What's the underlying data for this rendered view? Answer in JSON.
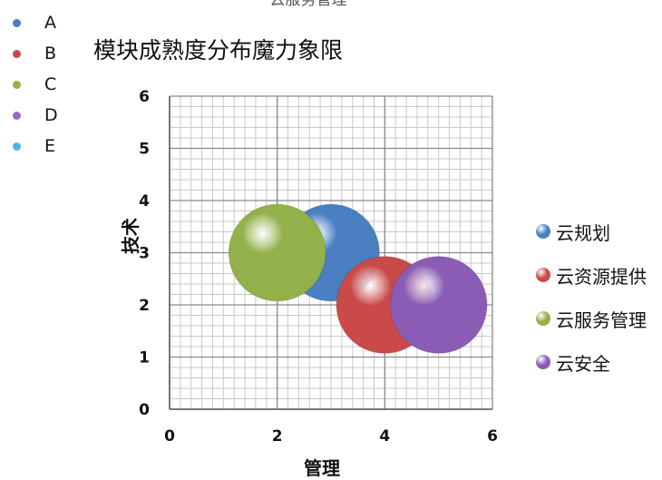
{
  "top_label": "云服务管理",
  "left_legend": [
    {
      "label": "A",
      "color": "#4a7fc1"
    },
    {
      "label": "B",
      "color": "#c94a48"
    },
    {
      "label": "C",
      "color": "#92b14a"
    },
    {
      "label": "D",
      "color": "#9a6ac5"
    },
    {
      "label": "E",
      "color": "#4ab6e8"
    }
  ],
  "chart_data": {
    "type": "bubble",
    "title": "模块成熟度分布魔力象限",
    "xlabel": "管理",
    "ylabel": "技术",
    "xlim": [
      0,
      6
    ],
    "ylim": [
      0,
      6
    ],
    "x_ticks": [
      "0",
      "2",
      "4",
      "6"
    ],
    "y_ticks": [
      "0",
      "1",
      "2",
      "3",
      "4",
      "5",
      "6"
    ],
    "grid": true,
    "legend_position": "right",
    "series": [
      {
        "name": "云规划",
        "x": 3,
        "y": 3,
        "size": 1,
        "color": "#4a7fc1"
      },
      {
        "name": "云资源提供",
        "x": 4,
        "y": 2,
        "size": 1,
        "color": "#c94a48"
      },
      {
        "name": "云服务管理",
        "x": 2,
        "y": 3,
        "size": 1,
        "color": "#92b14a"
      },
      {
        "name": "云安全",
        "x": 5,
        "y": 2,
        "size": 1,
        "color": "#8a5cb5"
      }
    ]
  }
}
